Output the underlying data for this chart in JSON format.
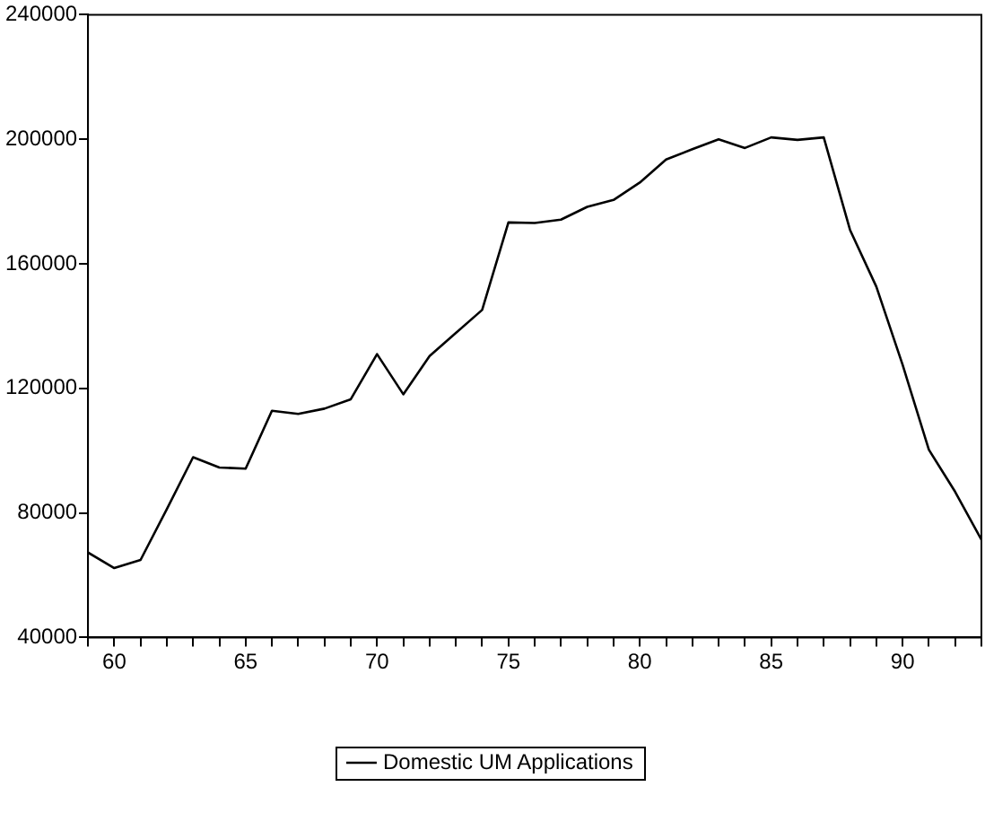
{
  "chart_data": {
    "type": "line",
    "x": [
      59,
      60,
      61,
      62,
      63,
      64,
      65,
      66,
      67,
      68,
      69,
      70,
      71,
      72,
      73,
      74,
      75,
      76,
      77,
      78,
      79,
      80,
      81,
      82,
      83,
      84,
      85,
      86,
      87,
      88,
      89,
      90,
      91,
      92,
      93
    ],
    "series": [
      {
        "name": "Domestic UM Applications",
        "color": "#000000",
        "values": [
          67300,
          62300,
          64900,
          81200,
          97900,
          94600,
          94200,
          112800,
          111800,
          113500,
          116500,
          131000,
          118100,
          130400,
          137800,
          145200,
          173300,
          173100,
          174200,
          178300,
          180500,
          186100,
          193500,
          196800,
          200000,
          197200,
          200600,
          199800,
          200600,
          170900,
          152700,
          127600,
          100300,
          86800,
          71400
        ]
      }
    ],
    "xlim": [
      59,
      93
    ],
    "xticks": [
      {
        "value": 59,
        "label": null
      },
      60,
      {
        "value": 61,
        "label": null
      },
      {
        "value": 62,
        "label": null
      },
      {
        "value": 63,
        "label": null
      },
      {
        "value": 64,
        "label": null
      },
      65,
      {
        "value": 66,
        "label": null
      },
      {
        "value": 67,
        "label": null
      },
      {
        "value": 68,
        "label": null
      },
      {
        "value": 69,
        "label": null
      },
      70,
      {
        "value": 71,
        "label": null
      },
      {
        "value": 72,
        "label": null
      },
      {
        "value": 73,
        "label": null
      },
      {
        "value": 74,
        "label": null
      },
      75,
      {
        "value": 76,
        "label": null
      },
      {
        "value": 77,
        "label": null
      },
      {
        "value": 78,
        "label": null
      },
      {
        "value": 79,
        "label": null
      },
      80,
      {
        "value": 81,
        "label": null
      },
      {
        "value": 82,
        "label": null
      },
      {
        "value": 83,
        "label": null
      },
      {
        "value": 84,
        "label": null
      },
      85,
      {
        "value": 86,
        "label": null
      },
      {
        "value": 87,
        "label": null
      },
      {
        "value": 88,
        "label": null
      },
      {
        "value": 89,
        "label": null
      },
      90,
      {
        "value": 91,
        "label": null
      },
      {
        "value": 92,
        "label": null
      },
      {
        "value": 93,
        "label": null
      }
    ],
    "ylim": [
      40000,
      240000
    ],
    "yticks": [
      40000,
      80000,
      120000,
      160000,
      200000,
      240000
    ],
    "grid": false,
    "legend": "bottom",
    "marker": "none",
    "line_style": "solid"
  }
}
